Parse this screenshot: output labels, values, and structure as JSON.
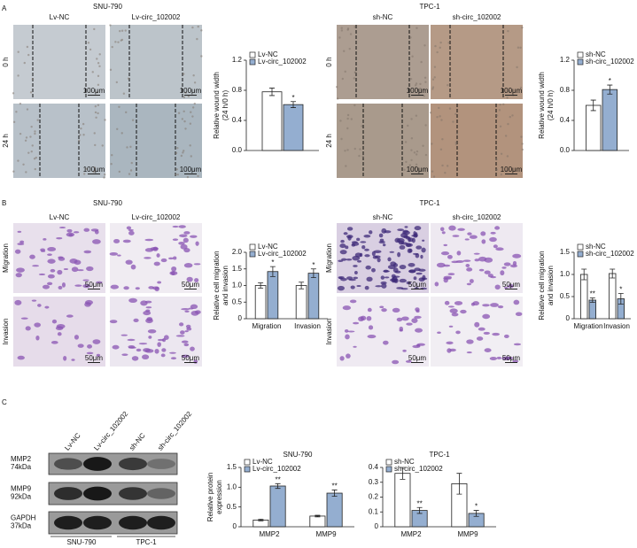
{
  "panel_labels": [
    "A",
    "B",
    "C"
  ],
  "panel_a": {
    "groups": [
      {
        "title": "SNU-790",
        "columns": [
          "Lv-NC",
          "Lv-circ_102002"
        ]
      },
      {
        "title": "TPC-1",
        "columns": [
          "sh-NC",
          "sh-circ_102002"
        ]
      }
    ],
    "rows": [
      "0 h",
      "24 h"
    ],
    "scale_bar": "100μm"
  },
  "panel_b": {
    "groups": [
      {
        "title": "SNU-790",
        "columns": [
          "Lv-NC",
          "Lv-circ_102002"
        ]
      },
      {
        "title": "TPC-1",
        "columns": [
          "sh-NC",
          "sh-circ_102002"
        ]
      }
    ],
    "rows": [
      "Migration",
      "Invasion"
    ],
    "scale_bar": "50μm"
  },
  "panel_c": {
    "lanes": [
      "Lv-NC",
      "Lv-circ_102002",
      "sh-NC",
      "sh-circ_102002"
    ],
    "bands": [
      [
        "MMP2",
        "74kDa"
      ],
      [
        "MMP9",
        "92kDa"
      ],
      [
        "GAPDH",
        "37kDa"
      ]
    ],
    "groups": [
      "SNU-790",
      "TPC-1"
    ]
  },
  "chart_data": [
    {
      "type": "bar",
      "ylabel": [
        "Relative wound width",
        "(24 h/0 h)"
      ],
      "categories": [
        null
      ],
      "ylim": [
        0,
        1.2
      ],
      "yticks": [
        {
          "value": 0,
          "label": "0.0"
        },
        0.4,
        0.8,
        1.2
      ],
      "legend": "upper left",
      "series": [
        {
          "name": "Lv-NC",
          "color": "#ffffff",
          "values": [
            0.78
          ],
          "errors": [
            0.05
          ]
        },
        {
          "name": "Lv-circ_102002",
          "color": "#94aed0",
          "values": [
            0.61
          ],
          "errors": [
            0.04
          ],
          "labels": [
            "*"
          ]
        }
      ]
    },
    {
      "type": "bar",
      "ylabel": [
        "Relative wound width",
        "(24 h/0 h)"
      ],
      "categories": [
        null
      ],
      "ylim": [
        0,
        1.2
      ],
      "yticks": [
        {
          "value": 0,
          "label": "0.0"
        },
        0.4,
        0.8,
        1.2
      ],
      "legend": "upper left",
      "series": [
        {
          "name": "sh-NC",
          "color": "#ffffff",
          "values": [
            0.6
          ],
          "errors": [
            0.07
          ]
        },
        {
          "name": "sh-circ_102002",
          "color": "#94aed0",
          "values": [
            0.81
          ],
          "errors": [
            0.06
          ],
          "labels": [
            "*"
          ]
        }
      ]
    },
    {
      "type": "bar",
      "ylabel": [
        "Relative cell migration",
        "and invasion"
      ],
      "categories": [
        "Migration",
        "Invasion"
      ],
      "ylim": [
        0,
        2
      ],
      "yticks": [
        0,
        0.5,
        {
          "value": 1,
          "label": "1.0"
        },
        1.5,
        {
          "value": 2,
          "label": "2.0"
        }
      ],
      "legend": "upper left",
      "series": [
        {
          "name": "Lv-NC",
          "color": "#ffffff",
          "values": [
            1.0,
            1.0
          ],
          "errors": [
            0.08,
            0.1
          ]
        },
        {
          "name": "Lv-circ_102002",
          "color": "#94aed0",
          "values": [
            1.42,
            1.37
          ],
          "errors": [
            0.15,
            0.13
          ],
          "labels": [
            "*",
            "*"
          ]
        }
      ]
    },
    {
      "type": "bar",
      "ylabel": [
        "Relative cell migration",
        "and invasion"
      ],
      "categories": [
        "Migration",
        "Invasion"
      ],
      "ylim": [
        0,
        1.5
      ],
      "yticks": [
        0,
        0.5,
        {
          "value": 1,
          "label": "1.0"
        },
        1.5
      ],
      "legend": "upper left",
      "series": [
        {
          "name": "sh-NC",
          "color": "#ffffff",
          "values": [
            1.0,
            1.02
          ],
          "errors": [
            0.12,
            0.1
          ]
        },
        {
          "name": "sh-circ_102002",
          "color": "#94aed0",
          "values": [
            0.42,
            0.45
          ],
          "errors": [
            0.05,
            0.12
          ],
          "labels": [
            "**",
            "*"
          ]
        }
      ]
    },
    {
      "type": "bar",
      "title": "SNU-790",
      "ylabel": [
        "Relative protein",
        "expression"
      ],
      "categories": [
        "MMP2",
        "MMP9"
      ],
      "ylim": [
        0,
        1.5
      ],
      "yticks": [
        0,
        0.5,
        {
          "value": 1,
          "label": "1.0"
        },
        1.5
      ],
      "legend": "upper left",
      "series": [
        {
          "name": "Lv-NC",
          "color": "#ffffff",
          "values": [
            0.17,
            0.27
          ],
          "errors": [
            0.02,
            0.02
          ]
        },
        {
          "name": "Lv-circ_102002",
          "color": "#94aed0",
          "values": [
            1.03,
            0.85
          ],
          "errors": [
            0.06,
            0.08
          ],
          "labels": [
            "**",
            "**"
          ]
        }
      ]
    },
    {
      "type": "bar",
      "title": "TPC-1",
      "categories": [
        "MMP2",
        "MMP9"
      ],
      "ylim": [
        0,
        0.4
      ],
      "yticks": [
        0,
        0.1,
        0.2,
        0.3,
        0.4
      ],
      "legend": "upper left",
      "series": [
        {
          "name": "sh-NC",
          "color": "#ffffff",
          "values": [
            0.36,
            0.29
          ],
          "errors": [
            0.04,
            0.07
          ]
        },
        {
          "name": "sh-circ_102002",
          "color": "#94aed0",
          "values": [
            0.11,
            0.09
          ],
          "errors": [
            0.02,
            0.02
          ],
          "labels": [
            "**",
            "*"
          ]
        }
      ]
    }
  ]
}
